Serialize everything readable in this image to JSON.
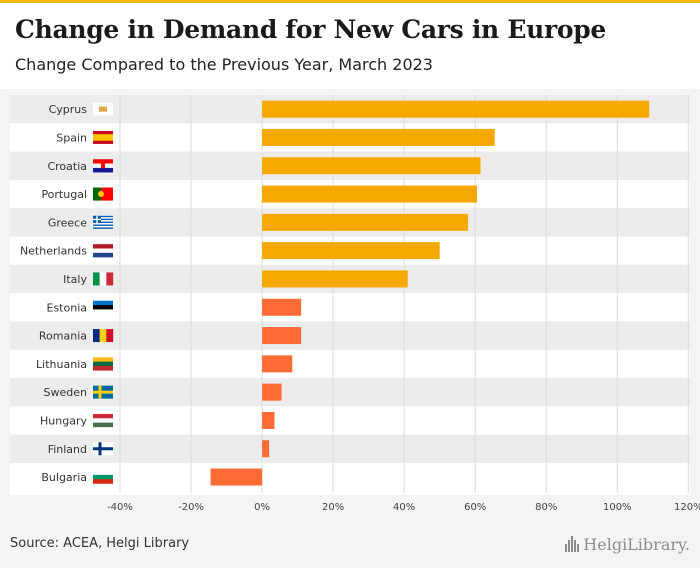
{
  "header": {
    "title": "Change in Demand for New Cars in Europe",
    "subtitle": "Change Compared to the Previous Year, March 2023"
  },
  "footer": {
    "source": "Source: ACEA, Helgi Library",
    "logo_text": "HelgiLibrary."
  },
  "colors": {
    "accent_bar": "#f5b400",
    "high_bar": "#f5a800",
    "low_bar": "#ff6b35",
    "row_band": "#ececec",
    "grid": "#dcdcdc"
  },
  "chart_data": {
    "type": "bar",
    "orientation": "horizontal",
    "title": "Change in Demand for New Cars in Europe",
    "subtitle": "Change Compared to the Previous Year, March 2023",
    "categories": [
      "Cyprus",
      "Spain",
      "Croatia",
      "Portugal",
      "Greece",
      "Netherlands",
      "Italy",
      "Estonia",
      "Romania",
      "Lithuania",
      "Sweden",
      "Hungary",
      "Finland",
      "Bulgaria"
    ],
    "values": [
      109,
      65.5,
      61.5,
      60.5,
      58,
      50,
      41,
      11,
      11,
      8.5,
      5.5,
      3.5,
      2,
      -14.5
    ],
    "flag_icons": [
      "cyprus-flag",
      "spain-flag",
      "croatia-flag",
      "portugal-flag",
      "greece-flag",
      "netherlands-flag",
      "italy-flag",
      "estonia-flag",
      "romania-flag",
      "lithuania-flag",
      "sweden-flag",
      "hungary-flag",
      "finland-flag",
      "bulgaria-flag"
    ],
    "xlim": [
      -40,
      120
    ],
    "xticks": [
      -40,
      -20,
      0,
      20,
      40,
      60,
      80,
      100,
      120
    ],
    "xtick_labels": [
      "-40%",
      "-20%",
      "0%",
      "20%",
      "40%",
      "60%",
      "80%",
      "100%",
      "120%"
    ],
    "grid": true,
    "legend": "none"
  }
}
